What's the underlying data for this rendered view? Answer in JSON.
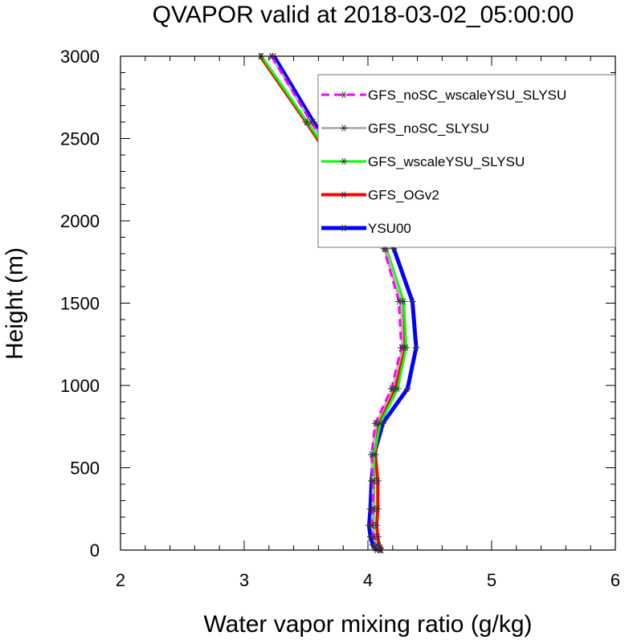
{
  "chart_data": {
    "type": "line",
    "title": "QVAPOR valid at 2018-03-02_05:00:00",
    "xlabel": "Water vapor mixing ratio (g/kg)",
    "ylabel": "Height (m)",
    "xlim": [
      2,
      6
    ],
    "ylim": [
      0,
      3000
    ],
    "xticks": [
      "2",
      "3",
      "4",
      "5",
      "6"
    ],
    "yticks": [
      "0",
      "500",
      "1000",
      "1500",
      "2000",
      "2500",
      "3000"
    ],
    "x_tick_values": [
      2,
      3,
      4,
      5,
      6
    ],
    "y_tick_values": [
      0,
      500,
      1000,
      1500,
      2000,
      2500,
      3000
    ],
    "legend_position": "top-right",
    "series": [
      {
        "name": "YSU00",
        "color": "#0000ff",
        "width": 5,
        "dash": "solid",
        "heights": [
          3000,
          2600,
          2200,
          1830,
          1510,
          1230,
          980,
          770,
          580,
          420,
          250,
          150,
          80,
          30,
          10,
          0
        ],
        "values": [
          3.24,
          3.56,
          3.92,
          4.21,
          4.36,
          4.39,
          4.32,
          4.12,
          4.05,
          4.03,
          4.02,
          4.01,
          4.02,
          4.04,
          4.06,
          4.07
        ]
      },
      {
        "name": "GFS_OGv2",
        "color": "#ff0000",
        "width": 4,
        "dash": "solid",
        "heights": [
          3000,
          2600,
          2200,
          1830,
          1510,
          1230,
          980,
          770,
          580,
          420,
          250,
          150,
          80,
          30,
          10,
          0
        ],
        "values": [
          3.13,
          3.5,
          3.86,
          4.14,
          4.27,
          4.29,
          4.22,
          4.09,
          4.06,
          4.08,
          4.08,
          4.07,
          4.08,
          4.09,
          4.1,
          4.1
        ]
      },
      {
        "name": "GFS_wscaleYSU_SLYSU",
        "color": "#00ff00",
        "width": 3,
        "dash": "solid",
        "heights": [
          3000,
          2600,
          2200,
          1830,
          1510,
          1230,
          980,
          770,
          580,
          420,
          250,
          150,
          80,
          30,
          10,
          0
        ],
        "values": [
          3.14,
          3.51,
          3.87,
          4.15,
          4.29,
          4.31,
          4.24,
          4.1,
          4.05,
          4.05,
          4.05,
          4.04,
          4.05,
          4.07,
          4.09,
          4.1
        ]
      },
      {
        "name": "GFS_noSC_SLYSU",
        "color": "#b4b4b4",
        "width": 3,
        "dash": "solid",
        "heights": [
          3000,
          2600,
          2200,
          1830,
          1510,
          1230,
          980,
          770,
          580,
          420,
          250,
          150,
          80,
          30,
          10,
          0
        ],
        "values": [
          3.22,
          3.54,
          3.9,
          4.14,
          4.27,
          4.28,
          4.2,
          4.07,
          4.03,
          4.04,
          4.04,
          4.03,
          4.05,
          4.07,
          4.09,
          4.1
        ]
      },
      {
        "name": "GFS_noSC_wscaleYSU_SLYSU",
        "color": "#ff00ff",
        "width": 3,
        "dash": "dashed",
        "heights": [
          3000,
          2600,
          2200,
          1830,
          1510,
          1230,
          980,
          770,
          580,
          420,
          250,
          150,
          80,
          30,
          10,
          0
        ],
        "values": [
          3.22,
          3.54,
          3.89,
          4.13,
          4.25,
          4.27,
          4.19,
          4.06,
          4.03,
          4.04,
          4.04,
          4.03,
          4.05,
          4.07,
          4.09,
          4.11
        ]
      }
    ],
    "legend_order": [
      "GFS_noSC_wscaleYSU_SLYSU",
      "GFS_noSC_SLYSU",
      "GFS_wscaleYSU_SLYSU",
      "GFS_OGv2",
      "YSU00"
    ]
  }
}
